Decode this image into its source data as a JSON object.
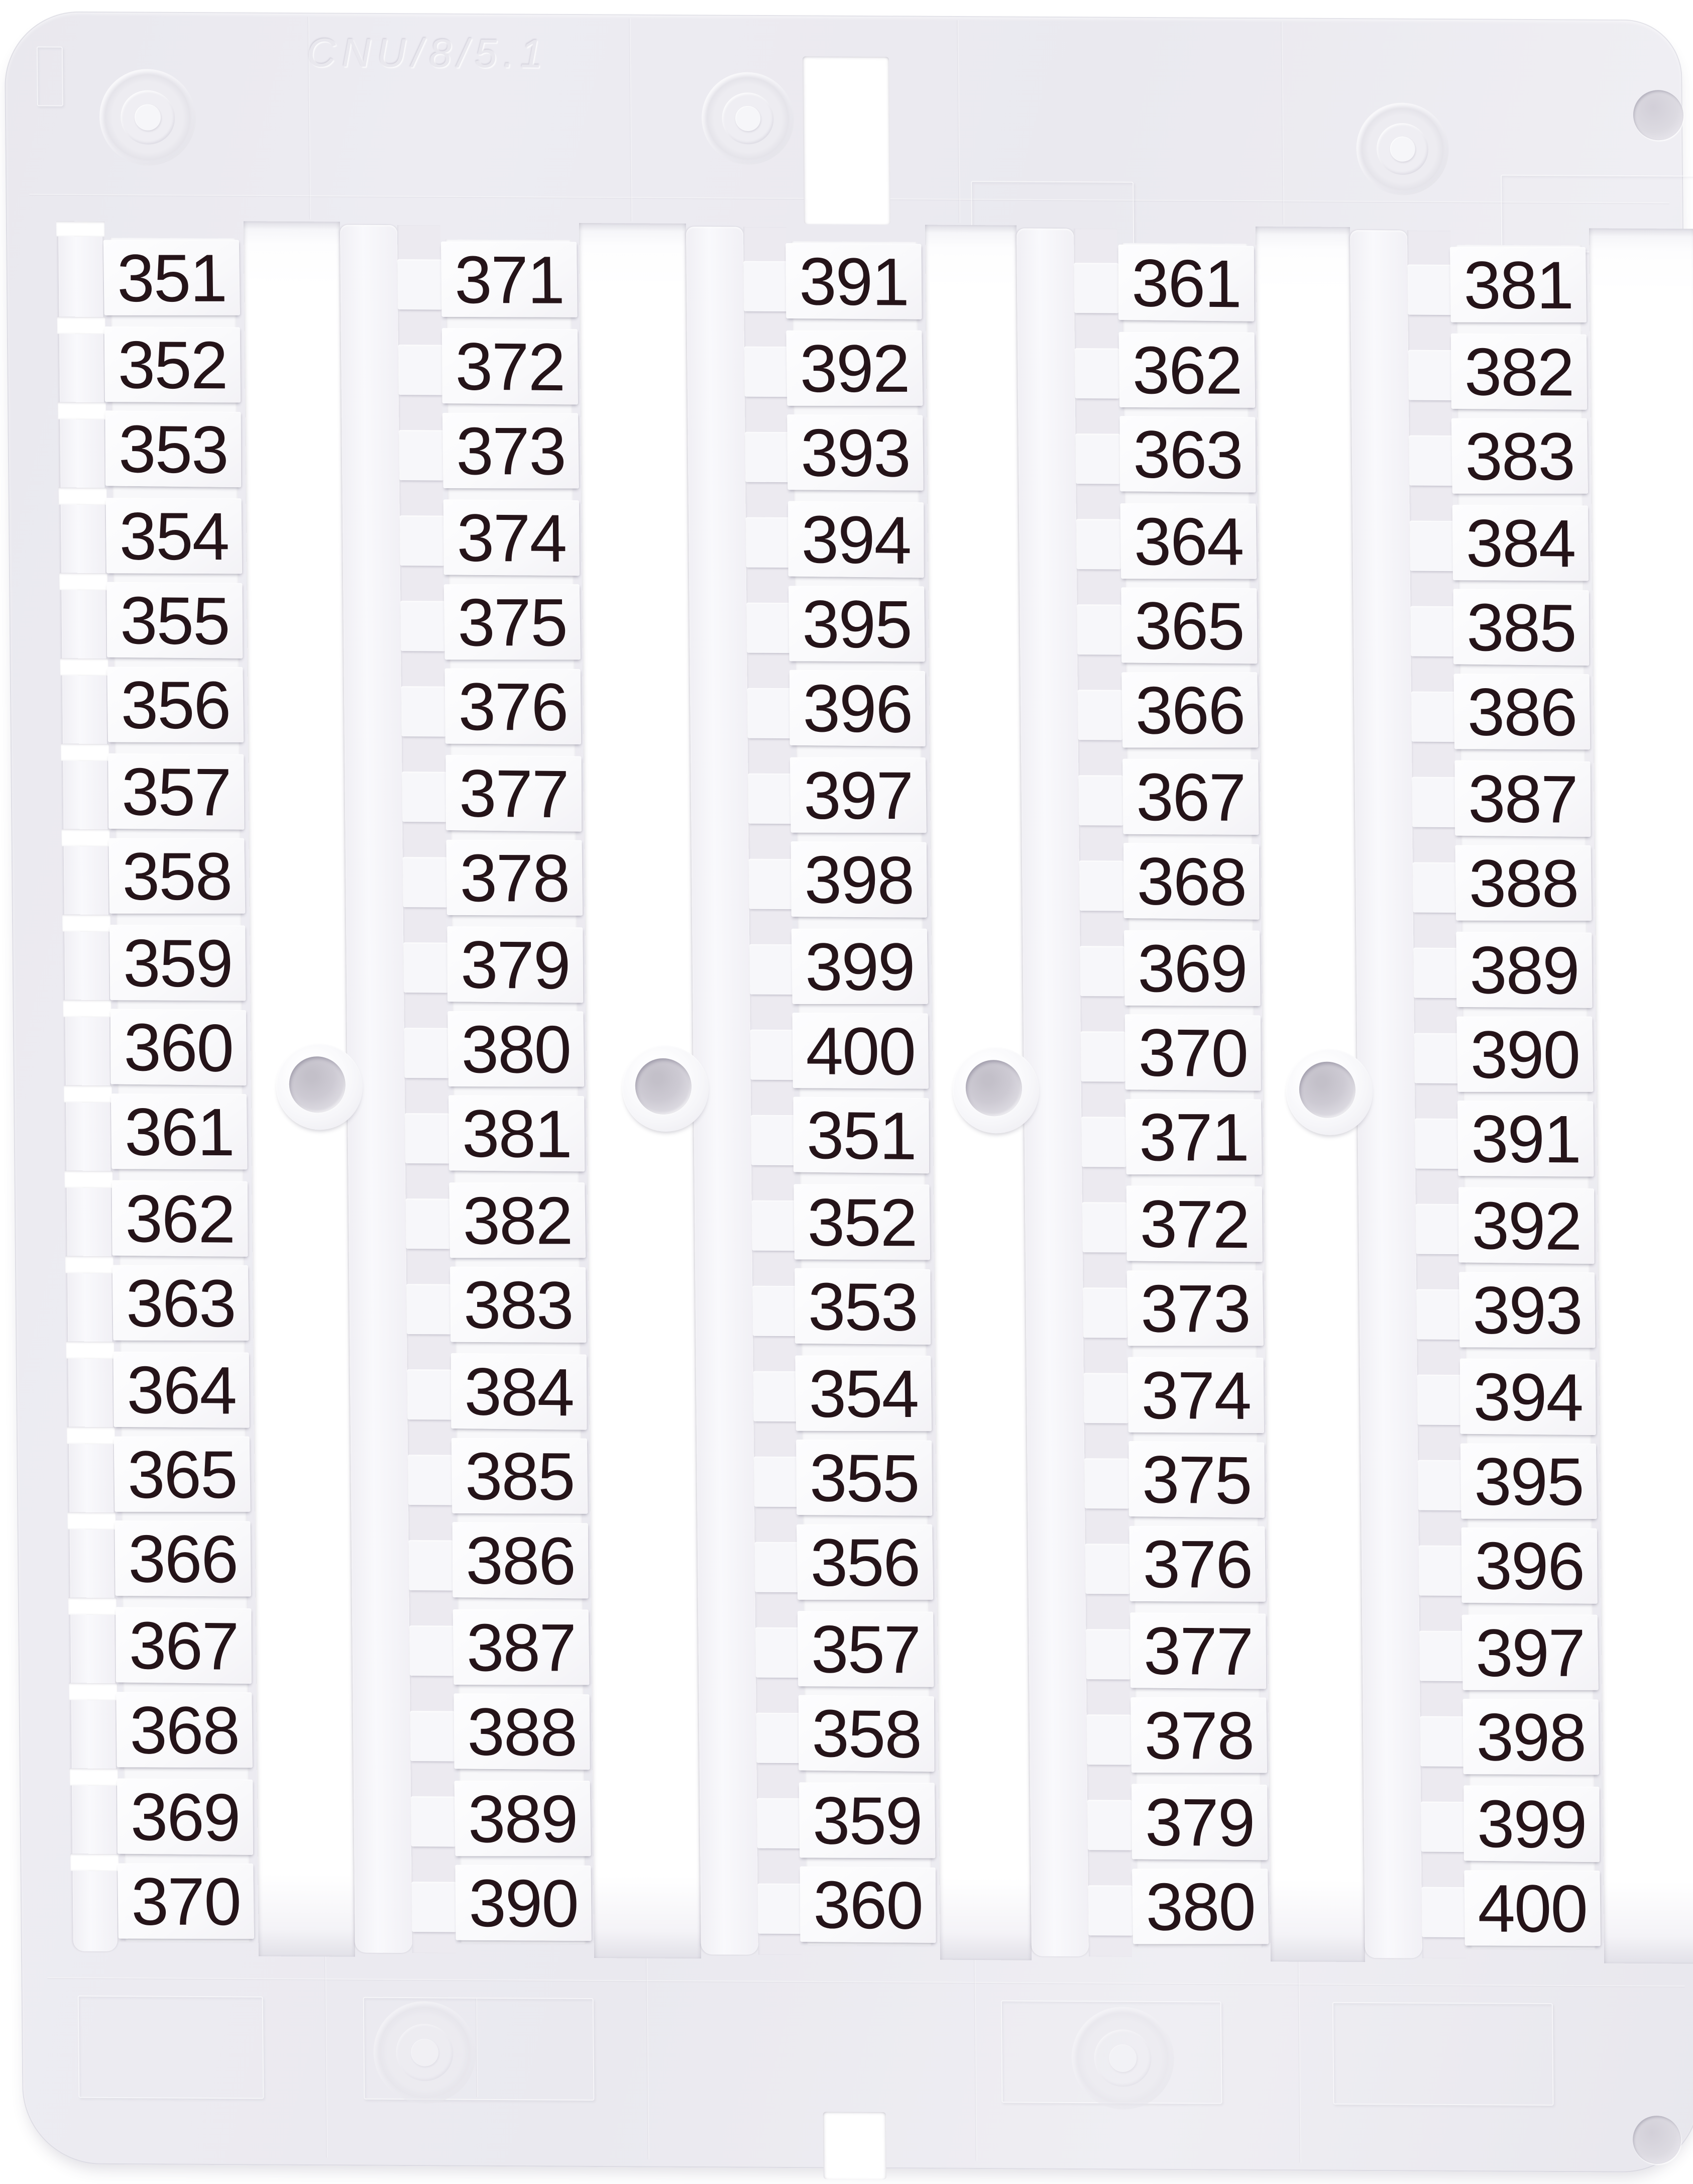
{
  "card": {
    "embossed_code": "CNU/8/5.1",
    "rows_per_column": 20,
    "columns": [
      {
        "id": "column-1",
        "values": [
          "351",
          "352",
          "353",
          "354",
          "355",
          "356",
          "357",
          "358",
          "359",
          "360",
          "361",
          "362",
          "363",
          "364",
          "365",
          "366",
          "367",
          "368",
          "369",
          "370"
        ]
      },
      {
        "id": "column-2",
        "values": [
          "371",
          "372",
          "373",
          "374",
          "375",
          "376",
          "377",
          "378",
          "379",
          "380",
          "381",
          "382",
          "383",
          "384",
          "385",
          "386",
          "387",
          "388",
          "389",
          "390"
        ]
      },
      {
        "id": "column-3",
        "values": [
          "391",
          "392",
          "393",
          "394",
          "395",
          "396",
          "397",
          "398",
          "399",
          "400",
          "351",
          "352",
          "353",
          "354",
          "355",
          "356",
          "357",
          "358",
          "359",
          "360"
        ]
      },
      {
        "id": "column-4",
        "values": [
          "361",
          "362",
          "363",
          "364",
          "365",
          "366",
          "367",
          "368",
          "369",
          "370",
          "371",
          "372",
          "373",
          "374",
          "375",
          "376",
          "377",
          "378",
          "379",
          "380"
        ]
      },
      {
        "id": "column-5",
        "values": [
          "381",
          "382",
          "383",
          "384",
          "385",
          "386",
          "387",
          "388",
          "389",
          "390",
          "391",
          "392",
          "393",
          "394",
          "395",
          "396",
          "397",
          "398",
          "399",
          "400"
        ]
      }
    ],
    "colors": {
      "frame": "#ebeaef",
      "cutout": "#ffffff",
      "tag": "#fbfbfd",
      "number": "#251419"
    }
  }
}
